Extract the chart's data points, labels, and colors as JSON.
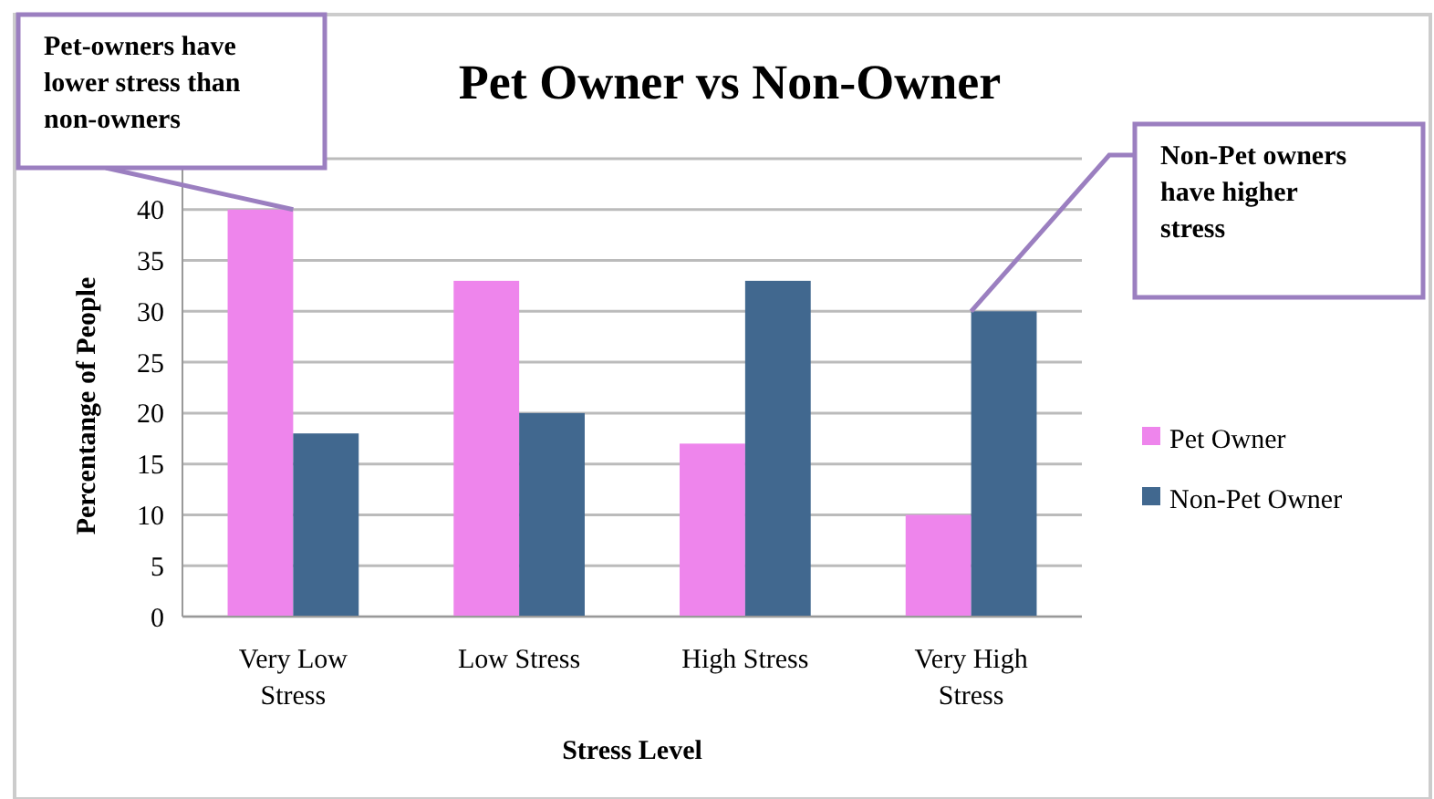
{
  "chart_data": {
    "type": "bar",
    "title": "Pet Owner vs Non-Owner",
    "xlabel": "Stress Level",
    "ylabel": "Percentange of People",
    "categories": [
      "Very Low Stress",
      "Low Stress",
      "High Stress",
      "Very High Stress"
    ],
    "series": [
      {
        "name": "Pet Owner",
        "color": "#ee85ec",
        "values": [
          40,
          33,
          17,
          10
        ]
      },
      {
        "name": "Non-Pet Owner",
        "color": "#41688f",
        "values": [
          18,
          20,
          33,
          30
        ]
      }
    ],
    "ylim": [
      0,
      45
    ],
    "yticks": [
      0,
      5,
      10,
      15,
      20,
      25,
      30,
      35,
      40,
      {
        "value": 45,
        "label": null
      }
    ],
    "grid": "y",
    "legend": "right",
    "annotations": [
      {
        "text": "Pet-owners have lower stress than non-owners",
        "x": "Very Low Stress",
        "y": 40
      },
      {
        "text": "Non-Pet owners have higher stress",
        "x": "Very High Stress",
        "y": 30
      }
    ]
  }
}
